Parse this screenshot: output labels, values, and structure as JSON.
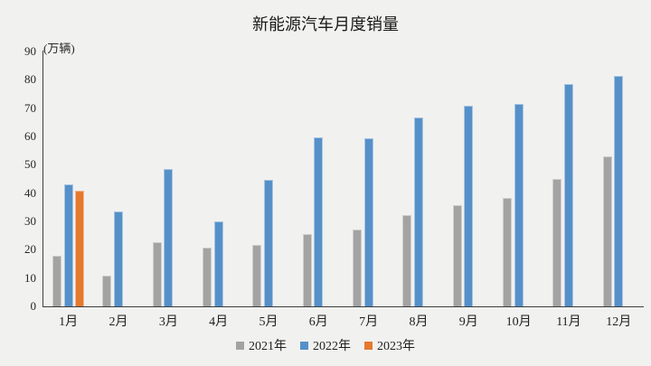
{
  "chart_data": {
    "type": "bar",
    "title": "新能源汽车月度销量",
    "unit_label": "(万辆)",
    "categories": [
      "1月",
      "2月",
      "3月",
      "4月",
      "5月",
      "6月",
      "7月",
      "8月",
      "9月",
      "10月",
      "11月",
      "12月"
    ],
    "series": [
      {
        "name": "2021年",
        "color": "#a3a3a3",
        "values": [
          17.9,
          11.0,
          22.6,
          20.6,
          21.7,
          25.6,
          27.1,
          32.1,
          35.7,
          38.3,
          45.0,
          53.1
        ]
      },
      {
        "name": "2022年",
        "color": "#5690c8",
        "values": [
          43.1,
          33.4,
          48.4,
          29.9,
          44.7,
          59.6,
          59.3,
          66.6,
          70.8,
          71.4,
          78.6,
          81.4
        ]
      },
      {
        "name": "2023年",
        "color": "#e5792e",
        "values": [
          40.8,
          null,
          null,
          null,
          null,
          null,
          null,
          null,
          null,
          null,
          null,
          null
        ]
      }
    ],
    "ylim": [
      0,
      90
    ],
    "yticks": [
      0,
      10,
      20,
      30,
      40,
      50,
      60,
      70,
      80,
      90
    ],
    "grid": false,
    "legend_position": "bottom",
    "background_color": "#f1f1f0",
    "axis_color": "#3f3f3f"
  }
}
